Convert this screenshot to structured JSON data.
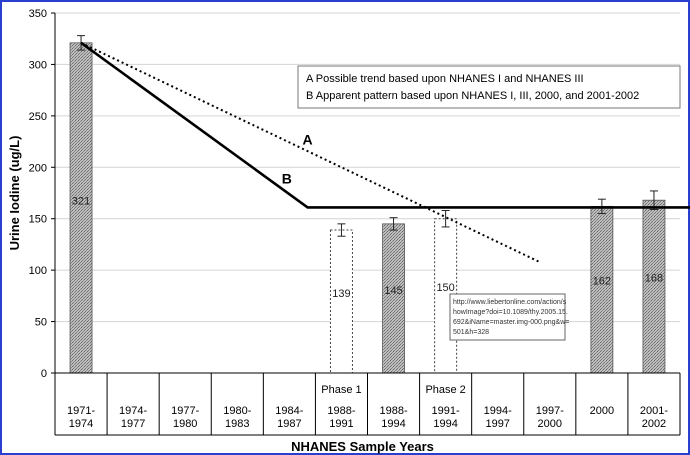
{
  "chart_data": {
    "type": "bar",
    "xlabel": "NHANES Sample Years",
    "ylabel": "Urine Iodine (ug/L)",
    "ylim": [
      0,
      350
    ],
    "yticks": [
      0,
      50,
      100,
      150,
      200,
      250,
      300,
      350
    ],
    "grid": true,
    "categories": [
      [
        "1971-",
        "1974"
      ],
      [
        "1974-",
        "1977"
      ],
      [
        "1977-",
        "1980"
      ],
      [
        "1980-",
        "1983"
      ],
      [
        "1984-",
        "1987"
      ],
      [
        "1988-",
        "1991"
      ],
      [
        "1988-",
        "1994"
      ],
      [
        "1991-",
        "1994"
      ],
      [
        "1994-",
        "1997"
      ],
      [
        "1997-",
        "2000"
      ],
      [
        "2000",
        ""
      ],
      [
        "2001-",
        "2002"
      ]
    ],
    "phase_labels": [
      {
        "category_index": 5,
        "text": "Phase 1"
      },
      {
        "category_index": 7,
        "text": "Phase 2"
      }
    ],
    "bars": [
      {
        "category_index": 0,
        "value": 321,
        "label": "321",
        "error": 7,
        "style": "solid"
      },
      {
        "category_index": 5,
        "value": 139,
        "label": "139",
        "error": 6,
        "style": "dashed"
      },
      {
        "category_index": 6,
        "value": 145,
        "label": "145",
        "error": 6,
        "style": "solid"
      },
      {
        "category_index": 7,
        "value": 150,
        "label": "150",
        "error": 8,
        "style": "dashed"
      },
      {
        "category_index": 10,
        "value": 162,
        "label": "162",
        "error": 7,
        "style": "solid"
      },
      {
        "category_index": 11,
        "value": 168,
        "label": "168",
        "error": 9,
        "style": "solid"
      }
    ],
    "trend_lines": [
      {
        "id": "A",
        "style": "dotted",
        "points": [
          [
            0,
            321
          ],
          [
            8.8,
            108
          ]
        ],
        "label": "A",
        "label_at": [
          4.35,
          222
        ]
      },
      {
        "id": "B",
        "style": "solid",
        "points": [
          [
            0,
            321
          ],
          [
            4.35,
            161
          ],
          [
            12,
            161
          ]
        ],
        "label": "B",
        "label_at": [
          3.95,
          184
        ]
      }
    ],
    "legend": {
      "position": "top-right",
      "entries": [
        "A   Possible trend based upon NHANES I and NHANES III",
        "B   Apparent pattern based upon NHANES I, III, 2000, and 2001-2002"
      ]
    },
    "tooltip_lines": [
      "http://www.liebertonline.com/action/s",
      "howImage?doi=10.1089/thy.2005.15.",
      "692&iName=master.img-000.png&w=",
      "501&h=328"
    ]
  }
}
